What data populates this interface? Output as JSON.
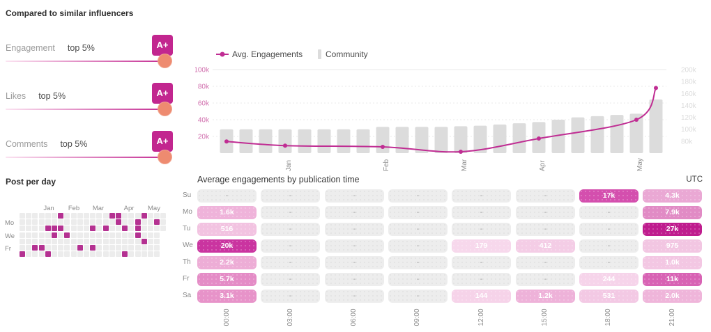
{
  "colors": {
    "accent": "#c2268f",
    "line": "#c02d93",
    "bar": "#dcdcdc",
    "avatar_orange": "#ee8b70",
    "heat_filled": "#b43191",
    "heat_empty": "#ececec",
    "left_axis_text": "#d170ae",
    "right_axis_text": "#dcdcdc",
    "month_text": "#8e8e8e",
    "grid_line": "#e8e8e8"
  },
  "comparison": {
    "title": "Compared to similar influencers",
    "metrics": [
      {
        "label": "Engagement",
        "percentile": "top 5%",
        "grade": "A+"
      },
      {
        "label": "Likes",
        "percentile": "top 5%",
        "grade": "A+"
      },
      {
        "label": "Comments",
        "percentile": "top 5%",
        "grade": "A+"
      }
    ]
  },
  "post_per_day": {
    "title": "Post per day",
    "months": [
      "Jan",
      "Feb",
      "Mar",
      "Apr",
      "May"
    ],
    "month_offsets": [
      42,
      78,
      113,
      157,
      193
    ],
    "day_labels": [
      {
        "label": "Mo",
        "row": 1
      },
      {
        "label": "We",
        "row": 3
      },
      {
        "label": "Fr",
        "row": 5
      }
    ],
    "cols_per_row": [
      23,
      23,
      23,
      22,
      22,
      22,
      22
    ],
    "filled": [
      [
        0,
        6
      ],
      [
        0,
        14
      ],
      [
        0,
        15
      ],
      [
        0,
        19
      ],
      [
        1,
        15
      ],
      [
        1,
        18
      ],
      [
        1,
        21
      ],
      [
        2,
        4
      ],
      [
        2,
        5
      ],
      [
        2,
        6
      ],
      [
        2,
        11
      ],
      [
        2,
        13
      ],
      [
        2,
        16
      ],
      [
        2,
        18
      ],
      [
        3,
        5
      ],
      [
        3,
        7
      ],
      [
        3,
        18
      ],
      [
        4,
        19
      ],
      [
        5,
        2
      ],
      [
        5,
        3
      ],
      [
        5,
        9
      ],
      [
        5,
        11
      ],
      [
        6,
        0
      ],
      [
        6,
        4
      ],
      [
        6,
        16
      ]
    ]
  },
  "chart_data": {
    "type": "line",
    "legend": [
      "Avg. Engagements",
      "Community"
    ],
    "series": [
      {
        "name": "Avg. Engagements",
        "type": "line",
        "axis": "left",
        "x_index": [
          0,
          3,
          8,
          12,
          16,
          21,
          22
        ],
        "values_k": [
          14,
          9,
          7.5,
          1.7,
          17.5,
          40,
          78
        ]
      },
      {
        "name": "Community",
        "type": "bar",
        "axis": "right",
        "values_k": [
          100,
          100,
          100,
          100,
          100,
          100,
          100,
          100,
          104,
          104,
          104,
          104,
          105,
          106,
          108,
          110,
          112,
          116,
          120,
          122,
          124,
          126,
          150
        ]
      }
    ],
    "x_month_labels": [
      {
        "label": "Jan",
        "bar_index": 3
      },
      {
        "label": "Feb",
        "bar_index": 8
      },
      {
        "label": "Mar",
        "bar_index": 12
      },
      {
        "label": "Apr",
        "bar_index": 16
      },
      {
        "label": "May",
        "bar_index": 21
      }
    ],
    "left_axis": {
      "ticks": [
        "100k",
        "80k",
        "60k",
        "40k",
        "20k"
      ],
      "range_k": [
        0,
        100
      ]
    },
    "right_axis": {
      "ticks": [
        "200k",
        "180k",
        "160k",
        "140k",
        "120k",
        "100k",
        "80k"
      ],
      "range_k": [
        60,
        200
      ]
    },
    "grid": true
  },
  "pub_time": {
    "title": "Average engagements by publication time",
    "timezone": "UTC",
    "day_labels": [
      "Su",
      "Mo",
      "Tu",
      "We",
      "Th",
      "Fr",
      "Sa"
    ],
    "time_labels": [
      "00:00",
      "03:00",
      "06:00",
      "09:00",
      "12:00",
      "15:00",
      "18:00",
      "21:00"
    ],
    "cells": [
      [
        null,
        null,
        null,
        null,
        null,
        null,
        {
          "v": "17k",
          "c": "#d44fae"
        },
        {
          "v": "4.3k",
          "c": "#eaa8d4"
        }
      ],
      [
        {
          "v": "1.6k",
          "c": "#efb3da"
        },
        null,
        null,
        null,
        null,
        null,
        null,
        {
          "v": "7.9k",
          "c": "#e18bc5"
        }
      ],
      [
        {
          "v": "516",
          "c": "#f2c3e1"
        },
        null,
        null,
        null,
        null,
        null,
        null,
        {
          "v": "27k",
          "c": "#bf1c8e"
        }
      ],
      [
        {
          "v": "20k",
          "c": "#ca34a0"
        },
        null,
        null,
        null,
        {
          "v": "179",
          "c": "#f7d8ec"
        },
        {
          "v": "412",
          "c": "#f4cde6"
        },
        null,
        {
          "v": "975",
          "c": "#f2c6e2"
        }
      ],
      [
        {
          "v": "2.2k",
          "c": "#edadd6"
        },
        null,
        null,
        null,
        null,
        null,
        null,
        {
          "v": "1.0k",
          "c": "#f3c7e3"
        }
      ],
      [
        {
          "v": "5.7k",
          "c": "#e48cc6"
        },
        null,
        null,
        null,
        null,
        null,
        {
          "v": "244",
          "c": "#f6d4ea"
        },
        {
          "v": "11k",
          "c": "#d863b4"
        }
      ],
      [
        {
          "v": "3.1k",
          "c": "#e793c9"
        },
        null,
        null,
        null,
        {
          "v": "144",
          "c": "#f6d3e9"
        },
        {
          "v": "1.2k",
          "c": "#eeb2d9"
        },
        {
          "v": "531",
          "c": "#f3c9e4"
        },
        {
          "v": "2.0k",
          "c": "#efb5da"
        }
      ]
    ],
    "empty_placeholder": "-"
  }
}
